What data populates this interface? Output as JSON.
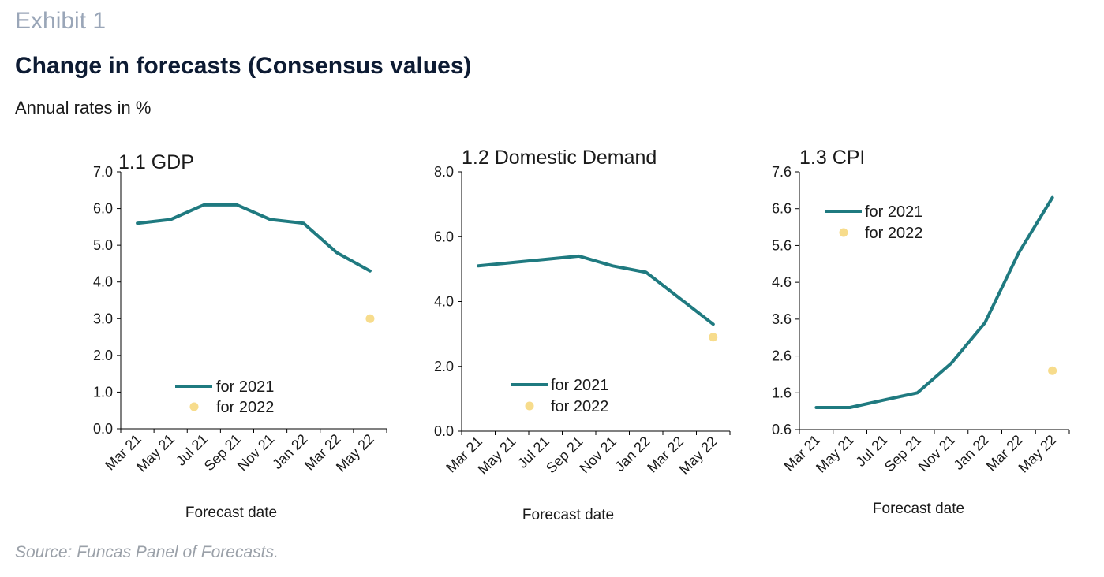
{
  "header": {
    "exhibit": "Exhibit 1",
    "title": "Change in forecasts (Consensus values)",
    "subtitle": "Annual rates in %"
  },
  "footer": {
    "source": "Source: Funcas Panel of Forecasts."
  },
  "colors": {
    "series_2021": "#1f7a80",
    "series_2022": "#f7dc8c",
    "axis": "#000000"
  },
  "chart_data": [
    {
      "type": "line",
      "title": "1.1 GDP",
      "xlabel": "Forecast date",
      "ylabel": "",
      "categories": [
        "Mar 21",
        "May 21",
        "Jul 21",
        "Sep 21",
        "Nov 21",
        "Jan 22",
        "Mar 22",
        "May 22"
      ],
      "ylim": [
        0,
        7
      ],
      "yticks": [
        "0.0",
        "1.0",
        "2.0",
        "3.0",
        "4.0",
        "5.0",
        "6.0",
        "7.0"
      ],
      "series": [
        {
          "name": "for 2021",
          "kind": "line",
          "x": [
            0,
            1,
            2,
            3,
            4,
            5,
            6,
            7
          ],
          "values": [
            5.6,
            5.7,
            6.1,
            6.1,
            5.7,
            5.6,
            4.8,
            4.3
          ]
        },
        {
          "name": "for 2022",
          "kind": "point",
          "x": [
            7
          ],
          "values": [
            3.0
          ]
        }
      ],
      "legend": "bottom-center"
    },
    {
      "type": "line",
      "title": "1.2 Domestic Demand",
      "xlabel": "Forecast date",
      "ylabel": "",
      "categories": [
        "Mar 21",
        "May 21",
        "Jul 21",
        "Sep 21",
        "Nov 21",
        "Jan 22",
        "Mar 22",
        "May 22"
      ],
      "ylim": [
        0,
        8
      ],
      "yticks": [
        "0.0",
        "2.0",
        "4.0",
        "6.0",
        "8.0"
      ],
      "series": [
        {
          "name": "for 2021",
          "kind": "line",
          "x": [
            0,
            1,
            2,
            3,
            4,
            5,
            6,
            7
          ],
          "values": [
            5.1,
            5.2,
            5.3,
            5.4,
            5.1,
            4.9,
            4.1,
            3.3
          ]
        },
        {
          "name": "for 2022",
          "kind": "point",
          "x": [
            7
          ],
          "values": [
            2.9
          ]
        }
      ],
      "legend": "bottom-center"
    },
    {
      "type": "line",
      "title": "1.3 CPI",
      "xlabel": "Forecast date",
      "ylabel": "",
      "categories": [
        "Mar 21",
        "May 21",
        "Jul 21",
        "Sep 21",
        "Nov 21",
        "Jan 22",
        "Mar 22",
        "May 22"
      ],
      "ylim": [
        0.6,
        7.6
      ],
      "yticks": [
        "0.6",
        "1.6",
        "2.6",
        "3.6",
        "4.6",
        "5.6",
        "6.6",
        "7.6"
      ],
      "series": [
        {
          "name": "for 2021",
          "kind": "line",
          "x": [
            0,
            1,
            2,
            3,
            4,
            5,
            6,
            7
          ],
          "values": [
            1.2,
            1.2,
            1.4,
            1.6,
            2.4,
            3.5,
            5.4,
            6.9
          ]
        },
        {
          "name": "for 2022",
          "kind": "point",
          "x": [
            7
          ],
          "values": [
            2.2
          ]
        }
      ],
      "legend": "top-left"
    }
  ]
}
